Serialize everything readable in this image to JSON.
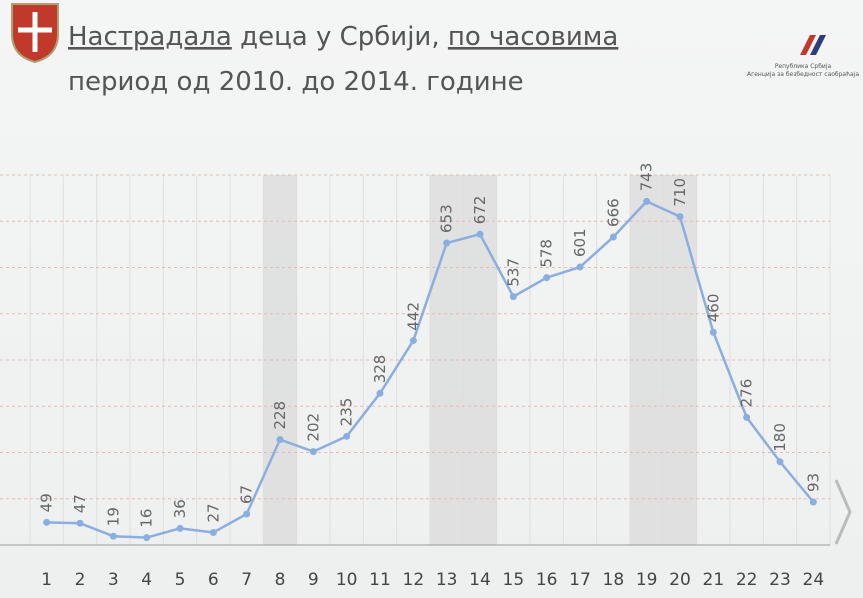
{
  "chart_data": {
    "type": "line",
    "title_parts": [
      "Настрадала",
      " деца у Србији, ",
      "по часовима"
    ],
    "subtitle": "период од 2010. до 2014. године",
    "logo_lines": [
      "Република Србија",
      "Агенција за безбедност саобраћаја"
    ],
    "categories": [
      "1",
      "2",
      "3",
      "4",
      "5",
      "6",
      "7",
      "8",
      "9",
      "10",
      "11",
      "12",
      "13",
      "14",
      "15",
      "16",
      "17",
      "18",
      "19",
      "20",
      "21",
      "22",
      "23",
      "24"
    ],
    "values": [
      49,
      47,
      19,
      16,
      36,
      27,
      67,
      228,
      202,
      235,
      328,
      442,
      653,
      672,
      537,
      578,
      601,
      666,
      743,
      710,
      460,
      276,
      180,
      93
    ],
    "color": "#8aaee0",
    "highlight": [
      "8",
      "13",
      "14",
      "19",
      "20"
    ],
    "ylim": [
      0,
      800
    ],
    "yticks": [
      0,
      100,
      200,
      300,
      400,
      500,
      600,
      700,
      800
    ],
    "grid": true
  }
}
